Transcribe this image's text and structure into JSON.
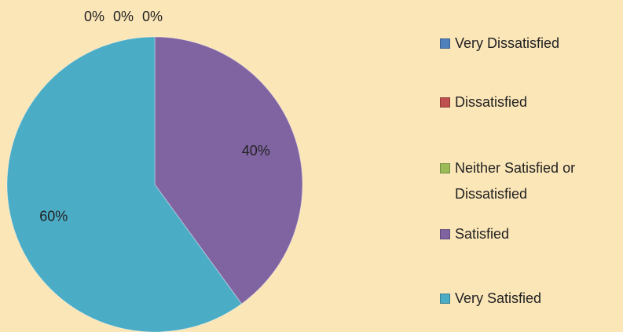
{
  "chart_data": {
    "type": "pie",
    "categories": [
      "Very Dissatisfied",
      "Dissatisfied",
      "Neither Satisfied or Dissatisfied",
      "Satisfied",
      "Very Satisfied"
    ],
    "values": [
      0,
      0,
      0,
      40,
      60
    ],
    "value_labels": [
      "0%",
      "0%",
      "0%",
      "40%",
      "60%"
    ],
    "colors": [
      "#4f81bd",
      "#c0504d",
      "#9bbb59",
      "#8064a2",
      "#4bacc6"
    ],
    "legend": "right"
  }
}
